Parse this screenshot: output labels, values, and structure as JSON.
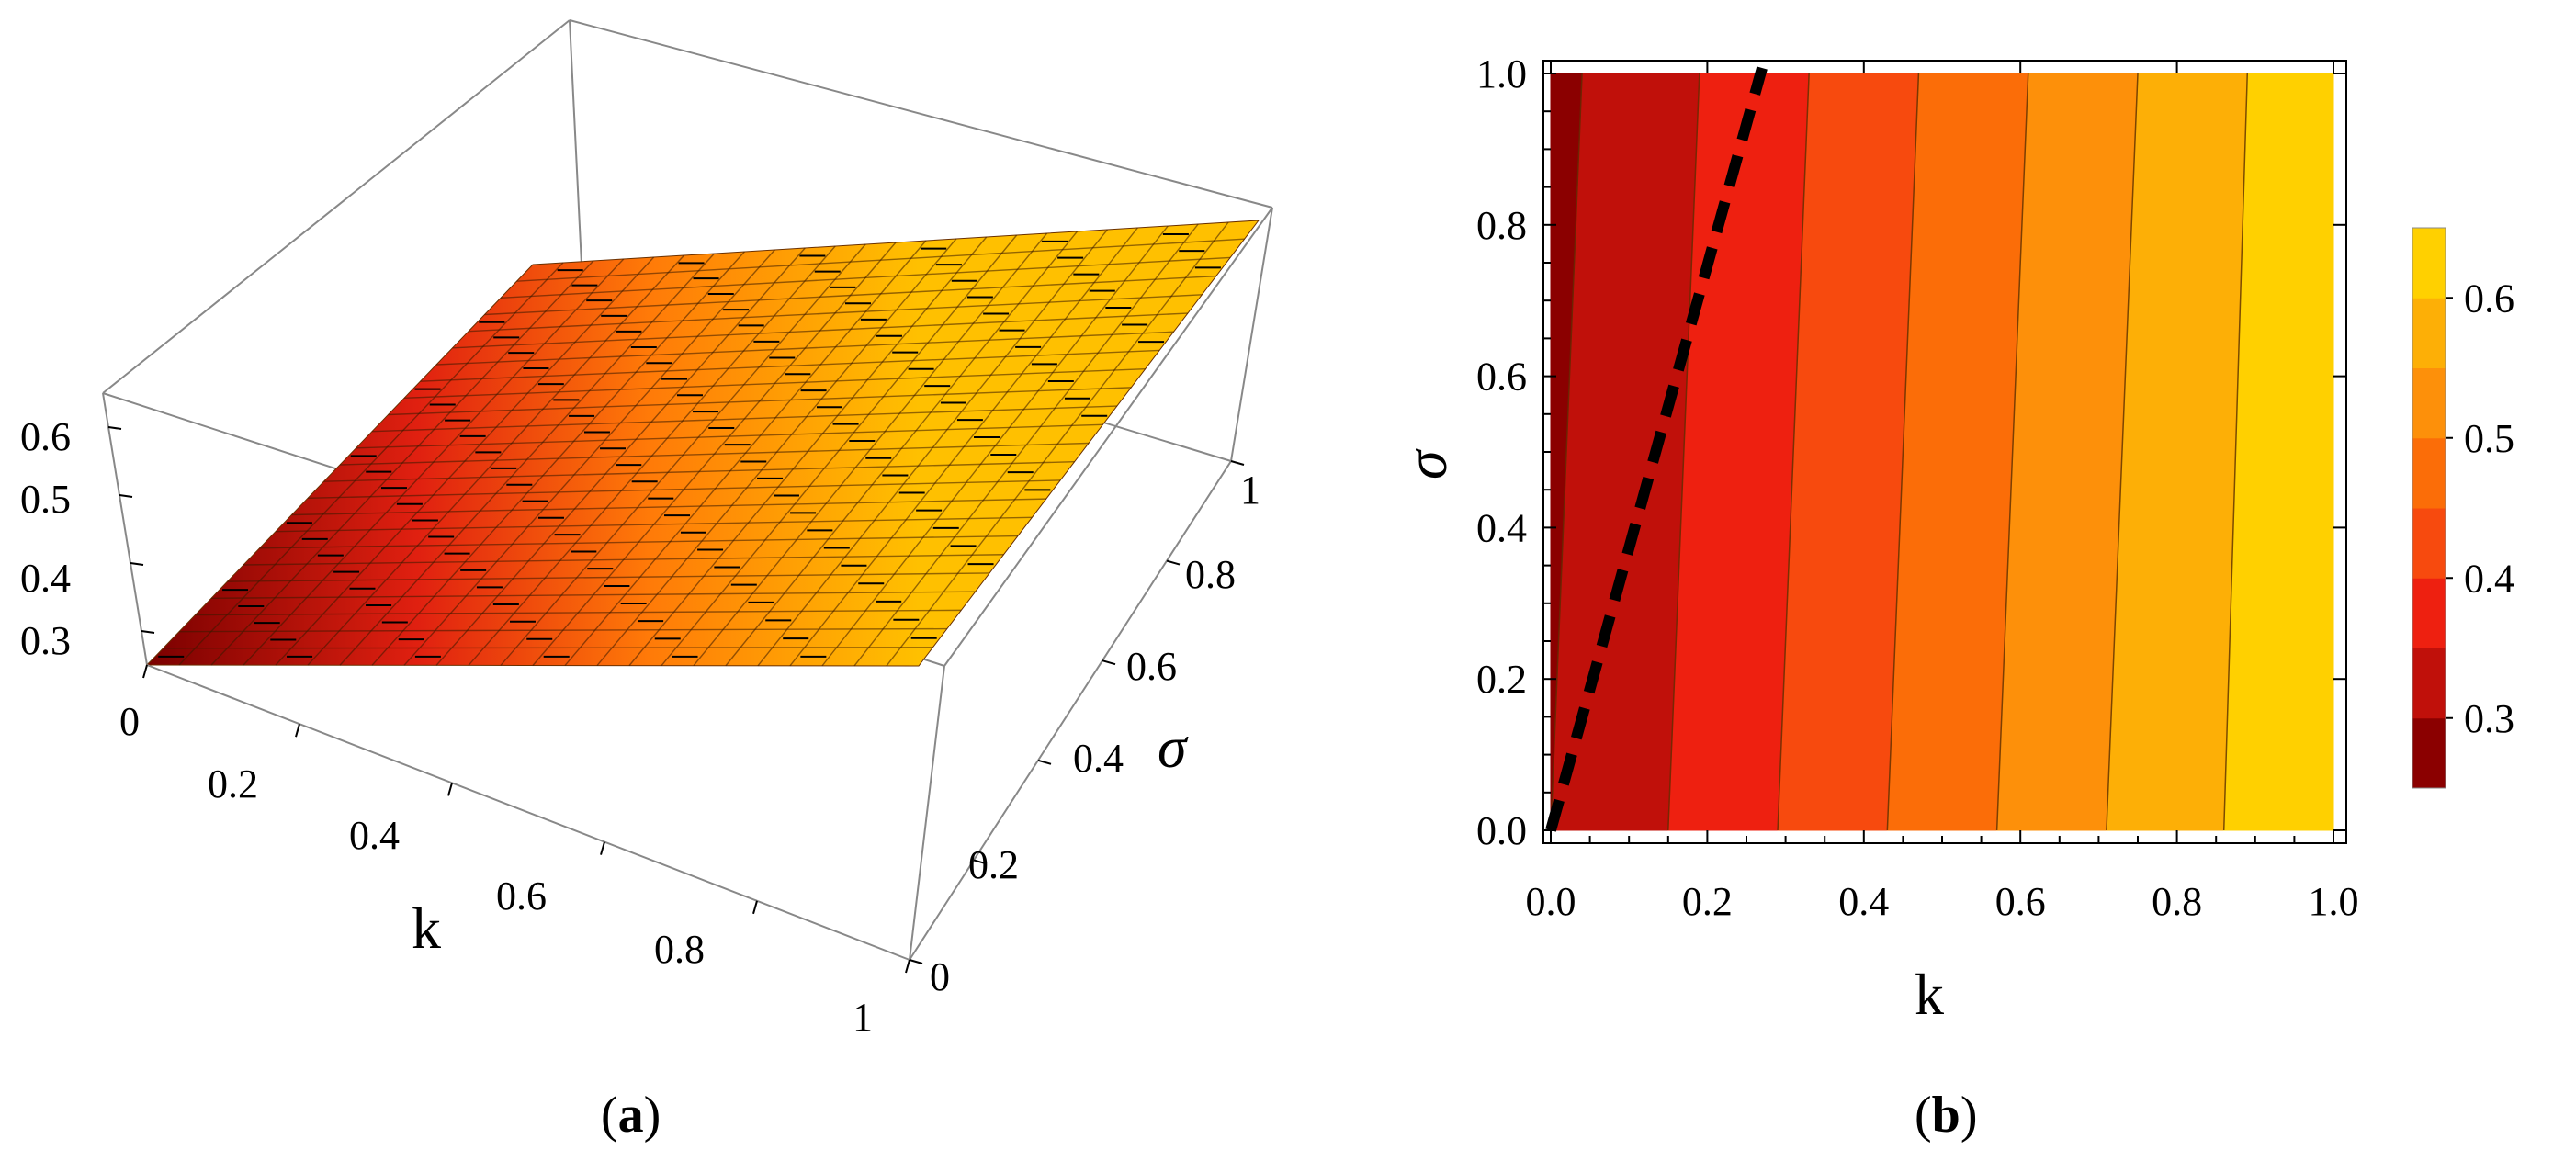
{
  "captions": {
    "a_open": "(",
    "a_letter": "a",
    "a_close": ")",
    "b_open": "(",
    "b_letter": "b",
    "b_close": ")"
  },
  "chart_data": [
    {
      "panel": "a",
      "type": "surface3d",
      "xlabel": "k",
      "ylabel": "σ",
      "zlabel": "",
      "xlim": [
        0,
        1
      ],
      "ylim": [
        0,
        1
      ],
      "zlim": [
        0.25,
        0.65
      ],
      "x_ticks": [
        "0",
        "0.2",
        "0.4",
        "0.6",
        "0.8",
        "1"
      ],
      "x_tick_values": [
        0,
        0.2,
        0.4,
        0.6,
        0.8,
        1
      ],
      "y_ticks": [
        "0",
        "0.2",
        "0.4",
        "0.6",
        "0.8",
        "1"
      ],
      "y_tick_values": [
        0,
        0.2,
        0.4,
        0.6,
        0.8,
        1
      ],
      "z_ticks": [
        "0.3",
        "0.4",
        "0.5",
        "0.6"
      ],
      "z_tick_values": [
        0.3,
        0.4,
        0.5,
        0.6
      ],
      "surface_corners": [
        {
          "k": 0,
          "sigma": 0,
          "value": 0.27
        },
        {
          "k": 1,
          "sigma": 0,
          "value": 0.63
        },
        {
          "k": 0,
          "sigma": 1,
          "value": 0.3
        },
        {
          "k": 1,
          "sigma": 1,
          "value": 0.65
        }
      ],
      "grid": true
    },
    {
      "panel": "b",
      "type": "contour",
      "xlabel": "k",
      "ylabel": "σ",
      "xlim": [
        0,
        1
      ],
      "ylim": [
        0,
        1
      ],
      "x_ticks": [
        "0.0",
        "0.2",
        "0.4",
        "0.6",
        "0.8",
        "1.0"
      ],
      "x_tick_values": [
        0,
        0.2,
        0.4,
        0.6,
        0.8,
        1.0
      ],
      "y_ticks": [
        "0.0",
        "0.2",
        "0.4",
        "0.6",
        "0.8",
        "1.0"
      ],
      "y_tick_values": [
        0,
        0.2,
        0.4,
        0.6,
        0.8,
        1.0
      ],
      "contour_levels": [
        0.275,
        0.3,
        0.35,
        0.4,
        0.45,
        0.5,
        0.55,
        0.6
      ],
      "contour_lines": [
        {
          "level": 0.275,
          "k_at_sigma0": 0.0,
          "k_at_sigma1": 0.04
        },
        {
          "level": 0.3,
          "k_at_sigma0": 0.15,
          "k_at_sigma1": 0.19
        },
        {
          "level": 0.35,
          "k_at_sigma0": 0.29,
          "k_at_sigma1": 0.33
        },
        {
          "level": 0.4,
          "k_at_sigma0": 0.43,
          "k_at_sigma1": 0.47
        },
        {
          "level": 0.45,
          "k_at_sigma0": 0.57,
          "k_at_sigma1": 0.61
        },
        {
          "level": 0.5,
          "k_at_sigma0": 0.71,
          "k_at_sigma1": 0.75
        },
        {
          "level": 0.55,
          "k_at_sigma0": 0.86,
          "k_at_sigma1": 0.89
        }
      ],
      "band_colors": [
        "#8b0000",
        "#c0100a",
        "#ee2010",
        "#f74a0e",
        "#fb6d08",
        "#fd900a",
        "#fdaf06",
        "#ffd000"
      ],
      "dashed_line": {
        "points": [
          [
            0.0,
            0.0
          ],
          [
            0.27,
            1.0
          ]
        ],
        "color": "#000000"
      },
      "colorbar": {
        "range": [
          0.25,
          0.65
        ],
        "tick_labels": [
          "0.3",
          "0.4",
          "0.5",
          "0.6"
        ],
        "tick_values": [
          0.3,
          0.4,
          0.5,
          0.6
        ],
        "colors": [
          "#8b0000",
          "#c0100a",
          "#ee2010",
          "#f74a0e",
          "#fb6d08",
          "#fd900a",
          "#fdaf06",
          "#ffd000"
        ]
      },
      "grid": false
    }
  ]
}
